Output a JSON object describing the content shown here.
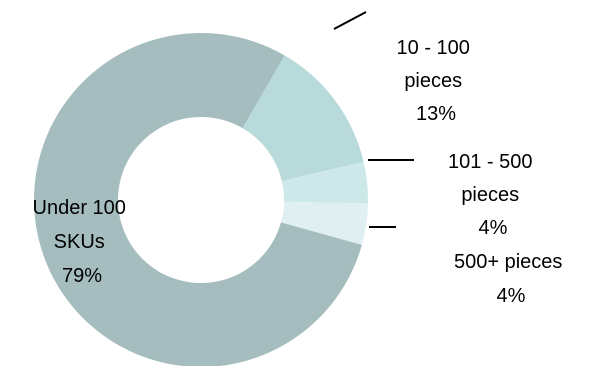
{
  "chart_data": {
    "type": "pie",
    "variant": "donut",
    "title": "",
    "legend": "none",
    "slices": [
      {
        "key": "under-100-skus",
        "label_lines": [
          "Under 100",
          "SKUs",
          "79%"
        ],
        "value": 79,
        "color": "#a5bdbe"
      },
      {
        "key": "10-100-pieces",
        "label_lines": [
          "10 - 100",
          "pieces",
          "13%"
        ],
        "value": 13,
        "color": "#b9dadb"
      },
      {
        "key": "101-500-pieces",
        "label_lines": [
          "101 - 500",
          "pieces",
          "4%"
        ],
        "value": 4,
        "color": "#cde8e9"
      },
      {
        "key": "500-plus-pieces",
        "label_lines": [
          "500+ pieces",
          "4%"
        ],
        "value": 4,
        "color": "#e0f0f2"
      }
    ]
  }
}
